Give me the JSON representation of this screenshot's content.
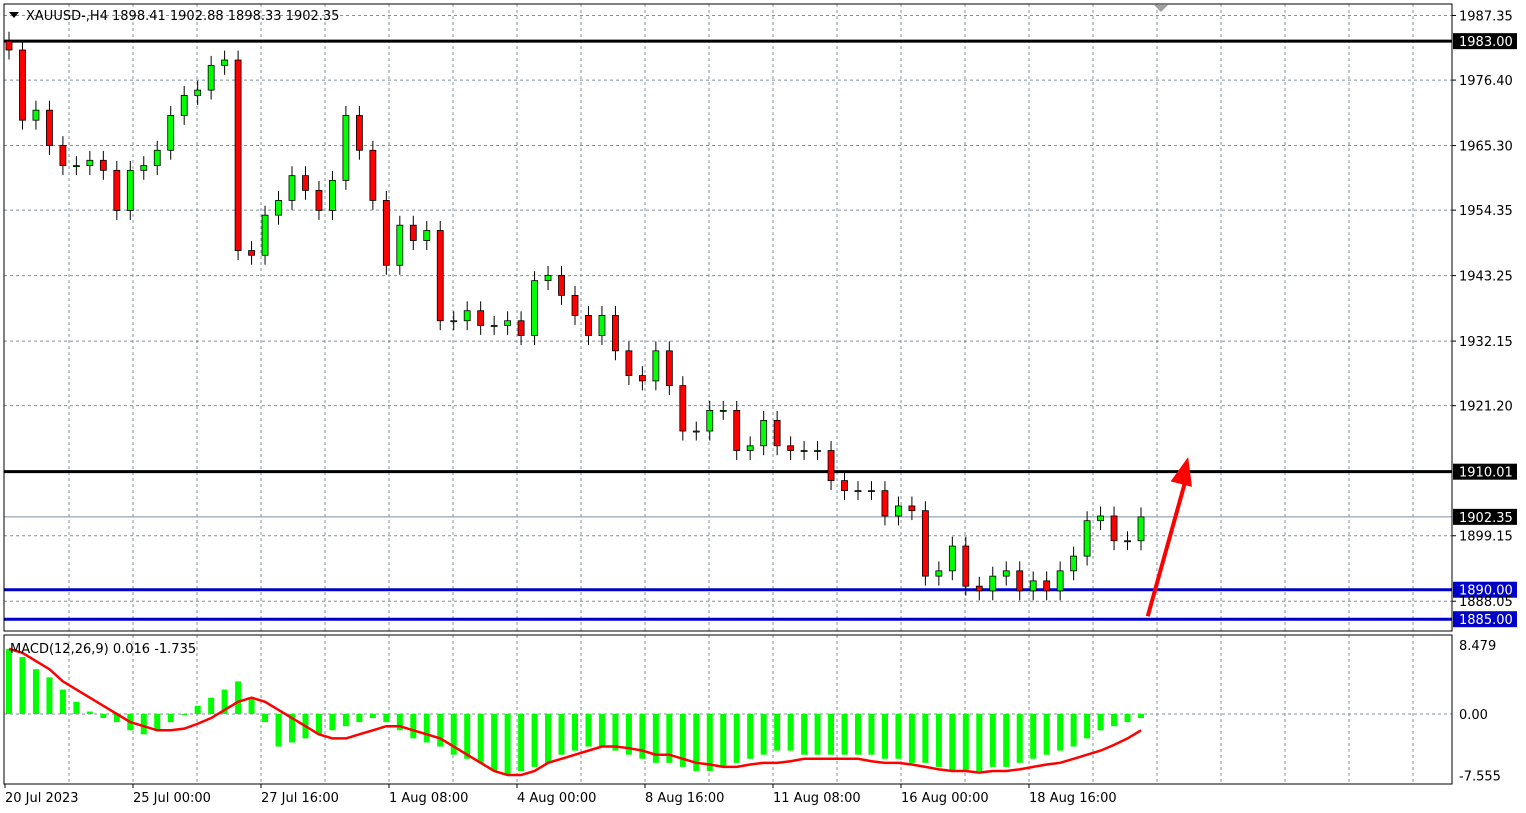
{
  "header": {
    "symbol": "XAUUSD-,H4",
    "ohlc": "1898.41 1902.88 1898.33 1902.35",
    "menu_icon": "triangle-down-icon"
  },
  "colors": {
    "bull": "#00ff00",
    "bear": "#ff0000",
    "support": "#0000c8",
    "resistance": "#000000",
    "signal": "#ff0000",
    "macd_hist": "#00ff00",
    "arrow": "#ff0000"
  },
  "chart_data": [
    {
      "type": "candlestick",
      "title": "XAUUSD-,H4",
      "ylim": [
        1883.0,
        1989.3
      ],
      "grid": true,
      "y_ticks": [
        "1987.35",
        "1976.40",
        "1965.30",
        "1954.35",
        "1943.25",
        "1932.15",
        "1921.20",
        "1899.15",
        "1888.05"
      ],
      "x_ticks": [
        "20 Jul 2023",
        "25 Jul 00:00",
        "27 Jul 16:00",
        "1 Aug 08:00",
        "4 Aug 00:00",
        "8 Aug 16:00",
        "11 Aug 08:00",
        "16 Aug 00:00",
        "18 Aug 16:00"
      ],
      "closes": [
        1981.5,
        1969.6,
        1971.3,
        1965.3,
        1961.9,
        1961.9,
        1962.8,
        1961.1,
        1954.3,
        1961.1,
        1961.9,
        1964.5,
        1970.4,
        1973.8,
        1974.7,
        1978.9,
        1979.8,
        1947.5,
        1946.7,
        1953.5,
        1956.0,
        1960.2,
        1957.7,
        1954.3,
        1959.4,
        1970.4,
        1964.5,
        1956.0,
        1945.0,
        1951.8,
        1949.2,
        1950.9,
        1935.6,
        1935.6,
        1937.3,
        1934.8,
        1934.8,
        1935.6,
        1933.1,
        1942.4,
        1943.3,
        1939.9,
        1936.5,
        1933.1,
        1936.5,
        1930.5,
        1926.3,
        1925.4,
        1930.5,
        1924.6,
        1916.9,
        1916.9,
        1920.4,
        1920.4,
        1913.6,
        1914.4,
        1918.7,
        1914.4,
        1913.6,
        1913.6,
        1913.6,
        1908.5,
        1906.8,
        1906.8,
        1906.8,
        1902.5,
        1904.2,
        1903.4,
        1892.3,
        1893.2,
        1897.4,
        1890.6,
        1889.8,
        1892.3,
        1893.2,
        1889.8,
        1891.5,
        1889.8,
        1893.2,
        1895.7,
        1901.7,
        1902.5,
        1898.3,
        1898.3,
        1902.35
      ],
      "current_price": {
        "value": 1902.35,
        "label": "1902.35"
      },
      "levels": [
        {
          "value": 1983.0,
          "label": "1983.00",
          "color": "#000000"
        },
        {
          "value": 1910.01,
          "label": "1910.01",
          "color": "#000000"
        },
        {
          "value": 1890.0,
          "label": "1890.00",
          "color": "#0000c8"
        },
        {
          "value": 1885.0,
          "label": "1885.00",
          "color": "#0000c8"
        }
      ],
      "arrow": {
        "from": [
          84.5,
          1885.5
        ],
        "to": [
          87.5,
          1912.5
        ]
      }
    },
    {
      "type": "bar+line",
      "title": "MACD(12,26,9) 0.016 -1.735",
      "ylim": [
        -8.6,
        9.7
      ],
      "y_ticks": [
        "8.479",
        "0.00",
        "-7.555"
      ],
      "y_tick_values": [
        8.479,
        0,
        -7.555
      ],
      "histogram": [
        8,
        7,
        5.5,
        4.5,
        3,
        1.5,
        0.3,
        -0.5,
        -1,
        -2,
        -2.5,
        -2,
        -1,
        0,
        1,
        2,
        3,
        4,
        2,
        -1,
        -4,
        -3.5,
        -3,
        -2.5,
        -2,
        -1.5,
        -1,
        -0.5,
        -1,
        -2,
        -3,
        -3.5,
        -4,
        -5,
        -5.5,
        -6,
        -7,
        -7.5,
        -7,
        -6.5,
        -6,
        -5,
        -4.5,
        -4,
        -4,
        -4.5,
        -5,
        -5.5,
        -6,
        -6,
        -6.5,
        -7,
        -7,
        -6.5,
        -6,
        -5.5,
        -5,
        -4.5,
        -4.5,
        -5,
        -5,
        -5,
        -5,
        -5,
        -5,
        -5.5,
        -5.5,
        -6,
        -6,
        -6.5,
        -7,
        -7,
        -7,
        -6.5,
        -6.5,
        -6,
        -5.5,
        -5,
        -4.5,
        -4,
        -3,
        -2,
        -1.5,
        -1,
        -0.5
      ],
      "signal": [
        8,
        7.5,
        6.5,
        5.5,
        4,
        3,
        2,
        1,
        0,
        -1,
        -1.5,
        -2,
        -2,
        -1.8,
        -1.2,
        -0.5,
        0.5,
        1.5,
        2,
        1.5,
        0.5,
        -0.5,
        -1.5,
        -2.5,
        -3,
        -3,
        -2.5,
        -2,
        -1.5,
        -1.5,
        -2,
        -2.5,
        -3,
        -4,
        -5,
        -6,
        -7,
        -7.5,
        -7.5,
        -7,
        -6,
        -5.5,
        -5,
        -4.5,
        -4,
        -4,
        -4.2,
        -4.5,
        -5,
        -5,
        -5.5,
        -6,
        -6.2,
        -6.5,
        -6.5,
        -6.2,
        -6,
        -6,
        -5.8,
        -5.5,
        -5.5,
        -5.5,
        -5.5,
        -5.5,
        -5.8,
        -6,
        -6,
        -6.2,
        -6.5,
        -6.8,
        -7,
        -7,
        -7.2,
        -7,
        -7,
        -6.8,
        -6.5,
        -6.2,
        -6,
        -5.5,
        -5,
        -4.5,
        -3.8,
        -3,
        -2
      ]
    }
  ]
}
